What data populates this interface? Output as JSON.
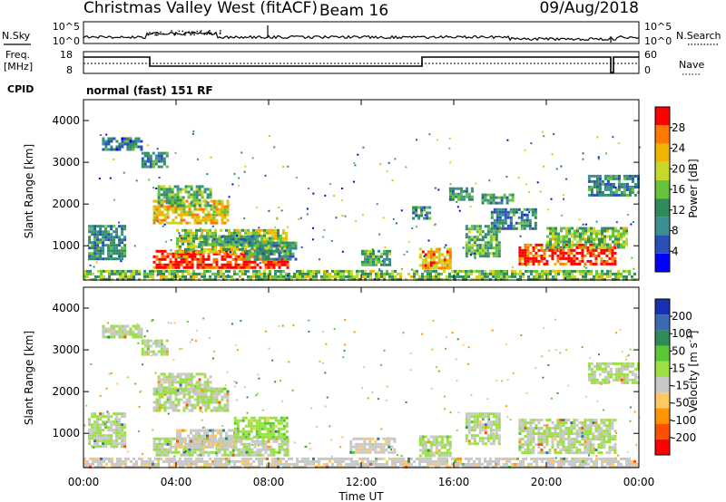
{
  "header": {
    "station": "Christmas Valley West (fitACF)",
    "beam": "Beam 16",
    "date": "09/Aug/2018"
  },
  "noise_panel": {
    "left_label": "N.Sky",
    "right_label": "N.Search",
    "left_ticks": [
      "10^5",
      "10^0"
    ],
    "right_ticks": [
      "10^5",
      "10^0"
    ]
  },
  "freq_panel": {
    "left_label_1": "Freq.",
    "left_label_2": "[MHz]",
    "right_label": "Nave",
    "left_ticks": [
      "18",
      "8"
    ],
    "right_ticks": [
      "60",
      "0"
    ]
  },
  "cpid": {
    "label": "CPID",
    "value": "normal (fast) 151 RF"
  },
  "chart_data": [
    {
      "type": "heatmap",
      "name": "power",
      "xlabel": "",
      "ylabel": "Slant Range [km]",
      "x_range_hours_ut": [
        0,
        24
      ],
      "ylim": [
        180,
        4500
      ],
      "yticks": [
        1000,
        2000,
        3000,
        4000
      ],
      "colorbar": {
        "label": "Power [dB]",
        "range": [
          0,
          32
        ],
        "ticks": [
          "28",
          "24",
          "20",
          "16",
          "12",
          "8",
          "4"
        ],
        "colors": [
          "#0000ff",
          "#2850b8",
          "#3a9090",
          "#2f8c5a",
          "#64c23c",
          "#c8d828",
          "#f0b400",
          "#ff7800",
          "#ff0000"
        ]
      },
      "regions": [
        {
          "t": [
            0.2,
            1.8
          ],
          "r": [
            700,
            1500
          ],
          "level": 10
        },
        {
          "t": [
            0.8,
            2.5
          ],
          "r": [
            3300,
            3600
          ],
          "level": 9
        },
        {
          "t": [
            2.5,
            3.6
          ],
          "r": [
            2900,
            3250
          ],
          "level": 10
        },
        {
          "t": [
            3.0,
            6.2
          ],
          "r": [
            1550,
            2100
          ],
          "level": 22
        },
        {
          "t": [
            3.2,
            5.5
          ],
          "r": [
            1950,
            2450
          ],
          "level": 14
        },
        {
          "t": [
            3.0,
            8.8
          ],
          "r": [
            500,
            900
          ],
          "level": 30
        },
        {
          "t": [
            4.0,
            8.8
          ],
          "r": [
            850,
            1400
          ],
          "level": 18
        },
        {
          "t": [
            5.0,
            7.5
          ],
          "r": [
            1050,
            1250
          ],
          "level": 12
        },
        {
          "t": [
            7.0,
            9.2
          ],
          "r": [
            700,
            1100
          ],
          "level": 12
        },
        {
          "t": [
            12.0,
            13.2
          ],
          "r": [
            550,
            900
          ],
          "level": 14
        },
        {
          "t": [
            14.5,
            15.8
          ],
          "r": [
            450,
            950
          ],
          "level": 24
        },
        {
          "t": [
            14.2,
            15.0
          ],
          "r": [
            1650,
            1950
          ],
          "level": 10
        },
        {
          "t": [
            15.8,
            16.8
          ],
          "r": [
            2100,
            2400
          ],
          "level": 12
        },
        {
          "t": [
            16.5,
            18.0
          ],
          "r": [
            750,
            1500
          ],
          "level": 14
        },
        {
          "t": [
            17.2,
            18.6
          ],
          "r": [
            2000,
            2250
          ],
          "level": 12
        },
        {
          "t": [
            17.6,
            19.5
          ],
          "r": [
            1400,
            1900
          ],
          "level": 10
        },
        {
          "t": [
            18.8,
            23.0
          ],
          "r": [
            550,
            1050
          ],
          "level": 30
        },
        {
          "t": [
            20.0,
            23.5
          ],
          "r": [
            950,
            1450
          ],
          "level": 16
        },
        {
          "t": [
            21.8,
            24.0
          ],
          "r": [
            2200,
            2700
          ],
          "level": 10
        },
        {
          "t": [
            0.0,
            24.0
          ],
          "r": [
            180,
            420
          ],
          "level": 16
        }
      ]
    },
    {
      "type": "heatmap",
      "name": "velocity",
      "xlabel": "Time UT",
      "ylabel": "Slant Range [km]",
      "x_range_hours_ut": [
        0,
        24
      ],
      "xticks": [
        "00:00",
        "04:00",
        "08:00",
        "12:00",
        "16:00",
        "20:00",
        "00:00"
      ],
      "ylim": [
        180,
        4500
      ],
      "yticks": [
        1000,
        2000,
        3000,
        4000
      ],
      "colorbar": {
        "label": "Velocity [m s^-1]",
        "range": [
          -250,
          250
        ],
        "ticks": [
          "200",
          "100",
          "50",
          "15",
          "-15",
          "-50",
          "-100",
          "-200"
        ],
        "colors": [
          "#ff0000",
          "#ff5000",
          "#ff9600",
          "#ffc864",
          "#c8c8c8",
          "#9ae040",
          "#5ac832",
          "#2e8c5a",
          "#3a6ab4",
          "#1830b4"
        ]
      },
      "regions": [
        {
          "t": [
            0.2,
            1.8
          ],
          "r": [
            700,
            1500
          ],
          "level": 0
        },
        {
          "t": [
            0.8,
            2.5
          ],
          "r": [
            3300,
            3600
          ],
          "level": 0
        },
        {
          "t": [
            2.5,
            3.6
          ],
          "r": [
            2900,
            3250
          ],
          "level": 0
        },
        {
          "t": [
            3.0,
            6.2
          ],
          "r": [
            1550,
            2100
          ],
          "level": 0
        },
        {
          "t": [
            3.2,
            5.5
          ],
          "r": [
            1950,
            2450
          ],
          "level": 0
        },
        {
          "t": [
            3.0,
            8.8
          ],
          "r": [
            500,
            900
          ],
          "level": 0
        },
        {
          "t": [
            4.0,
            6.5
          ],
          "r": [
            700,
            1100
          ],
          "level": -40
        },
        {
          "t": [
            6.5,
            8.8
          ],
          "r": [
            900,
            1400
          ],
          "level": 40
        },
        {
          "t": [
            11.5,
            13.5
          ],
          "r": [
            550,
            900
          ],
          "level": -40
        },
        {
          "t": [
            14.5,
            15.8
          ],
          "r": [
            450,
            950
          ],
          "level": 0
        },
        {
          "t": [
            16.5,
            18.0
          ],
          "r": [
            750,
            1500
          ],
          "level": 0
        },
        {
          "t": [
            18.8,
            23.0
          ],
          "r": [
            550,
            1350
          ],
          "level": 0
        },
        {
          "t": [
            21.8,
            24.0
          ],
          "r": [
            2200,
            2700
          ],
          "level": 0
        },
        {
          "t": [
            0.0,
            24.0
          ],
          "r": [
            180,
            420
          ],
          "level": -40
        }
      ]
    }
  ]
}
